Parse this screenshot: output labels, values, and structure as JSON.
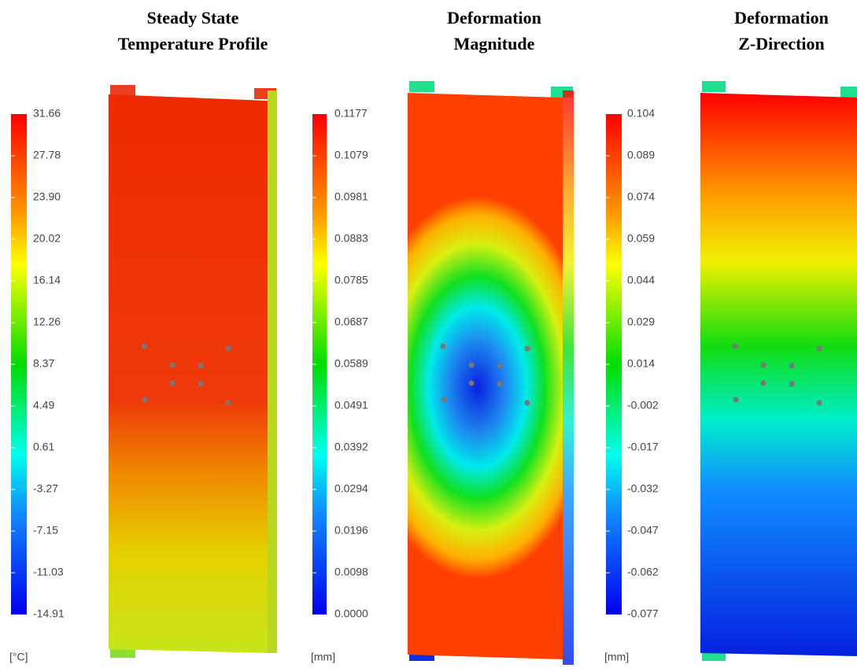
{
  "panels": [
    {
      "title": [
        "Steady State",
        "Temperature Profile"
      ],
      "scale": [
        "31.66",
        "27.78",
        "23.90",
        "20.02",
        "16.14",
        "12.26",
        "8.37",
        "4.49",
        "0.61",
        "-3.27",
        "-7.15",
        "-11.03",
        "-14.91"
      ],
      "unit": "[°C]"
    },
    {
      "title": [
        "Deformation",
        "Magnitude"
      ],
      "scale": [
        "0.1177",
        "0.1079",
        "0.0981",
        "0.0883",
        "0.0785",
        "0.0687",
        "0.0589",
        "0.0491",
        "0.0392",
        "0.0294",
        "0.0196",
        "0.0098",
        "0.0000"
      ],
      "unit": "[mm]"
    },
    {
      "title": [
        "Deformation",
        "Z-Direction"
      ],
      "scale": [
        "0.104",
        "0.089",
        "0.074",
        "0.059",
        "0.044",
        "0.029",
        "0.014",
        "-0.002",
        "-0.017",
        "-0.032",
        "-0.047",
        "-0.062",
        "-0.077"
      ],
      "unit": "[mm]"
    }
  ]
}
